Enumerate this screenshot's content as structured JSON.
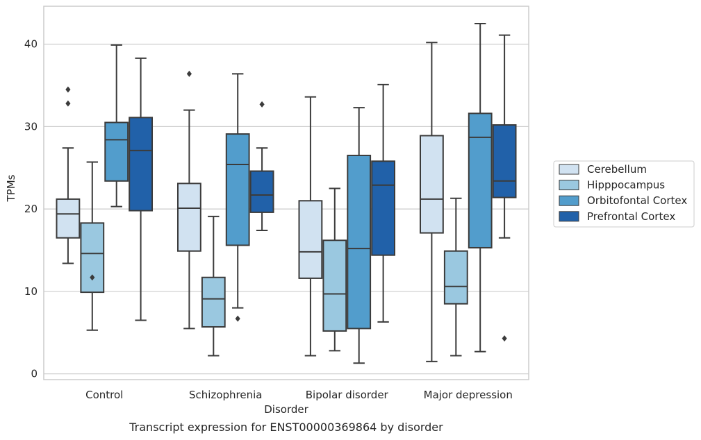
{
  "caption": "Transcript expression for ENST00000369864 by disorder",
  "chart_data": {
    "type": "box",
    "title": "",
    "xlabel": "Disorder",
    "ylabel": "TPMs",
    "ylim": [
      -0.7,
      44.6
    ],
    "yticks": [
      0,
      10,
      20,
      30,
      40
    ],
    "grid": "horizontal",
    "legend_position": "right",
    "categories": [
      "Control",
      "Schizophrenia",
      "Bipolar disorder",
      "Major depression"
    ],
    "series": [
      {
        "name": "Cerebellum",
        "color": "#d1e2f1",
        "boxes": [
          {
            "whislo": 13.4,
            "q1": 16.5,
            "med": 19.4,
            "q3": 21.2,
            "whishi": 27.4,
            "fliers": [
              32.8,
              34.5
            ]
          },
          {
            "whislo": 5.5,
            "q1": 14.9,
            "med": 20.1,
            "q3": 23.1,
            "whishi": 32.0,
            "fliers": [
              36.4
            ]
          },
          {
            "whislo": 2.2,
            "q1": 11.6,
            "med": 14.8,
            "q3": 21.0,
            "whishi": 33.6,
            "fliers": []
          },
          {
            "whislo": 1.5,
            "q1": 17.1,
            "med": 21.2,
            "q3": 28.9,
            "whishi": 40.2,
            "fliers": []
          }
        ]
      },
      {
        "name": "Hipppocampus",
        "color": "#9ac8e0",
        "boxes": [
          {
            "whislo": 5.3,
            "q1": 9.9,
            "med": 14.6,
            "q3": 18.3,
            "whishi": 25.7,
            "fliers": [
              11.7
            ]
          },
          {
            "whislo": 2.2,
            "q1": 5.7,
            "med": 9.1,
            "q3": 11.7,
            "whishi": 19.1,
            "fliers": []
          },
          {
            "whislo": 2.8,
            "q1": 5.2,
            "med": 9.7,
            "q3": 16.2,
            "whishi": 22.5,
            "fliers": []
          },
          {
            "whislo": 2.2,
            "q1": 8.5,
            "med": 10.6,
            "q3": 14.9,
            "whishi": 21.3,
            "fliers": []
          }
        ]
      },
      {
        "name": "Orbitofontal Cortex",
        "color": "#529dcc",
        "boxes": [
          {
            "whislo": 20.3,
            "q1": 23.4,
            "med": 28.4,
            "q3": 30.5,
            "whishi": 39.9,
            "fliers": []
          },
          {
            "whislo": 8.0,
            "q1": 15.6,
            "med": 25.4,
            "q3": 29.1,
            "whishi": 36.4,
            "fliers": [
              6.7
            ]
          },
          {
            "whislo": 1.3,
            "q1": 5.5,
            "med": 15.2,
            "q3": 26.5,
            "whishi": 32.3,
            "fliers": []
          },
          {
            "whislo": 2.7,
            "q1": 15.3,
            "med": 28.7,
            "q3": 31.6,
            "whishi": 42.5,
            "fliers": []
          }
        ]
      },
      {
        "name": "Prefrontal Cortex",
        "color": "#2161a9",
        "boxes": [
          {
            "whislo": 6.5,
            "q1": 19.8,
            "med": 27.1,
            "q3": 31.1,
            "whishi": 38.3,
            "fliers": []
          },
          {
            "whislo": 17.4,
            "q1": 19.6,
            "med": 21.7,
            "q3": 24.6,
            "whishi": 27.4,
            "fliers": [
              32.7
            ]
          },
          {
            "whislo": 6.3,
            "q1": 14.4,
            "med": 22.9,
            "q3": 25.8,
            "whishi": 35.1,
            "fliers": []
          },
          {
            "whislo": 16.5,
            "q1": 21.4,
            "med": 23.4,
            "q3": 30.2,
            "whishi": 41.1,
            "fliers": [
              4.3
            ]
          }
        ]
      }
    ]
  }
}
